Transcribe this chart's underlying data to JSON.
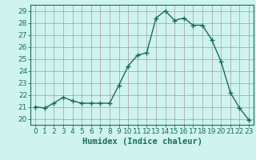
{
  "x": [
    0,
    1,
    2,
    3,
    4,
    5,
    6,
    7,
    8,
    9,
    10,
    11,
    12,
    13,
    14,
    15,
    16,
    17,
    18,
    19,
    20,
    21,
    22,
    23
  ],
  "y": [
    21.0,
    20.9,
    21.3,
    21.8,
    21.5,
    21.3,
    21.3,
    21.3,
    21.3,
    22.8,
    24.4,
    25.3,
    25.5,
    28.4,
    29.0,
    28.2,
    28.4,
    27.8,
    27.8,
    26.6,
    24.8,
    22.2,
    20.9,
    19.9
  ],
  "line_color": "#1a6b5a",
  "marker": "+",
  "marker_size": 4,
  "bg_color": "#cff4f0",
  "grid_color": "#aaaaaa",
  "tick_color": "#1a6b5a",
  "xlabel": "Humidex (Indice chaleur)",
  "ylim": [
    19.5,
    29.5
  ],
  "xlim": [
    -0.5,
    23.5
  ],
  "yticks": [
    20,
    21,
    22,
    23,
    24,
    25,
    26,
    27,
    28,
    29
  ],
  "xticks": [
    0,
    1,
    2,
    3,
    4,
    5,
    6,
    7,
    8,
    9,
    10,
    11,
    12,
    13,
    14,
    15,
    16,
    17,
    18,
    19,
    20,
    21,
    22,
    23
  ],
  "title_color": "#1a6b5a",
  "label_fontsize": 7.5,
  "tick_fontsize": 6.5
}
